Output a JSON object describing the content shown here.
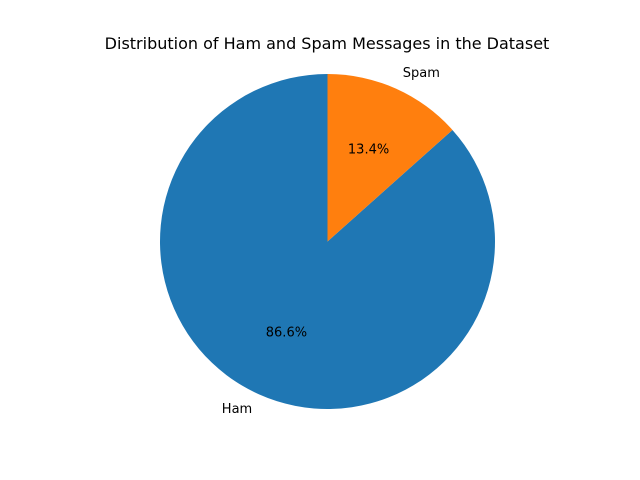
{
  "chart_data": {
    "type": "pie",
    "title": "Distribution of Ham and Spam Messages in the Dataset",
    "slices": [
      {
        "label": "Ham",
        "value": 86.6,
        "pct_label": "86.6%",
        "color": "#1f77b4"
      },
      {
        "label": "Spam",
        "value": 13.4,
        "pct_label": "13.4%",
        "color": "#ff7f0e"
      }
    ],
    "start_angle_deg": 90,
    "direction": "counterclockwise"
  }
}
